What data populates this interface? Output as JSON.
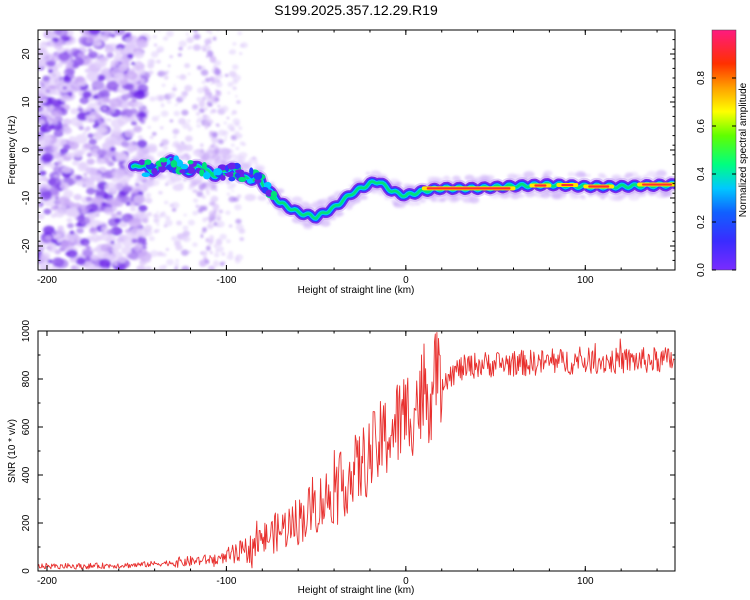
{
  "title": "S199.2025.357.12.29.R19",
  "chart_data": [
    {
      "type": "heatmap",
      "title": "S199.2025.357.12.29.R19",
      "xlabel": "Height of straight line (km)",
      "ylabel": "Frequency (Hz)",
      "xlim": [
        -205,
        150
      ],
      "ylim": [
        -25,
        25
      ],
      "xticks": [
        "-200",
        "-100",
        "0",
        "100"
      ],
      "yticks": [
        "-20",
        "-10",
        "0",
        "10",
        "20"
      ],
      "colorbar": {
        "label": "Normalized spectral amplitude",
        "range": [
          0,
          1
        ],
        "ticks": [
          "0.0",
          "0.2",
          "0.4",
          "0.6",
          "0.8"
        ]
      },
      "ridge": {
        "x": [
          -150,
          -140,
          -130,
          -120,
          -110,
          -100,
          -90,
          -80,
          -70,
          -60,
          -50,
          -40,
          -30,
          -20,
          -15,
          -10,
          -5,
          0,
          10,
          20,
          40,
          60,
          80,
          100,
          120,
          150
        ],
        "y": [
          -4,
          -3.5,
          -3,
          -4,
          -4.5,
          -4.5,
          -5,
          -7,
          -11,
          -13,
          -14,
          -12,
          -9,
          -7,
          -6.5,
          -8,
          -9,
          -9.5,
          -8.5,
          -8,
          -8,
          -7.5,
          -7.2,
          -7.6,
          -7.6,
          -7.2
        ]
      }
    },
    {
      "type": "line",
      "xlabel": "Height of straight line (km)",
      "ylabel": "SNR (10 * v/v)",
      "xlim": [
        -205,
        150
      ],
      "ylim": [
        0,
        1000
      ],
      "xticks": [
        "-200",
        "-100",
        "0",
        "100"
      ],
      "yticks": [
        "0",
        "200",
        "400",
        "600",
        "800",
        "1000"
      ],
      "series": [
        {
          "name": "SNR",
          "color": "#e8302e",
          "x": [
            -205,
            -180,
            -150,
            -120,
            -100,
            -90,
            -80,
            -70,
            -60,
            -50,
            -40,
            -30,
            -20,
            -10,
            0,
            10,
            20,
            30,
            40,
            60,
            80,
            100,
            120,
            150
          ],
          "y": [
            20,
            20,
            25,
            40,
            55,
            80,
            130,
            170,
            210,
            270,
            330,
            400,
            480,
            570,
            650,
            730,
            800,
            840,
            860,
            865,
            870,
            875,
            875,
            880
          ]
        }
      ]
    }
  ]
}
